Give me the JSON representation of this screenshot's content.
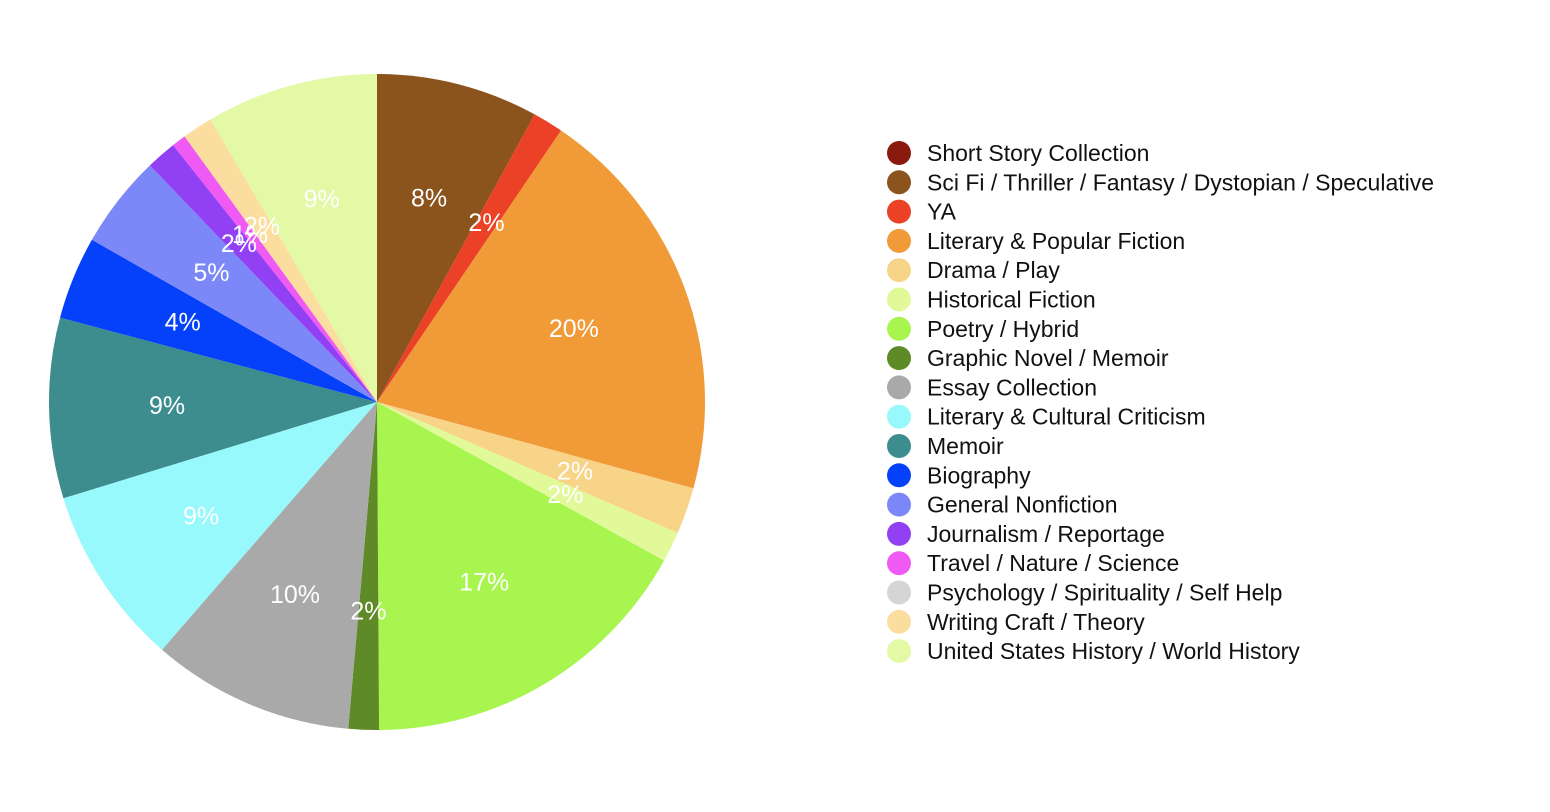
{
  "chart_data": {
    "type": "pie",
    "start_angle_deg": 0,
    "direction": "clockwise",
    "legend_position": "right",
    "slices": [
      {
        "name": "Short Story Collection",
        "value": 0,
        "label": "",
        "color": "#8B1A0E"
      },
      {
        "name": "Sci Fi / Thriller / Fantasy / Dystopian / Speculative",
        "value": 8,
        "label": "8%",
        "color": "#8B541C"
      },
      {
        "name": "YA",
        "value": 1.5,
        "label": "2%",
        "color": "#EA4127"
      },
      {
        "name": "Literary & Popular Fiction",
        "value": 19.8,
        "label": "20%",
        "color": "#F09A38"
      },
      {
        "name": "Drama / Play",
        "value": 2.3,
        "label": "2%",
        "color": "#F8D489"
      },
      {
        "name": "Historical Fiction",
        "value": 1.5,
        "label": "2%",
        "color": "#E2F99A"
      },
      {
        "name": "Poetry / Hybrid",
        "value": 16.9,
        "label": "17%",
        "color": "#A8F550"
      },
      {
        "name": "Graphic Novel / Memoir",
        "value": 1.5,
        "label": "2%",
        "color": "#5E8A27"
      },
      {
        "name": "Essay Collection",
        "value": 10,
        "label": "10%",
        "color": "#A9A9A9"
      },
      {
        "name": "Literary & Cultural Criticism",
        "value": 8.9,
        "label": "9%",
        "color": "#98F9FC"
      },
      {
        "name": "Memoir",
        "value": 8.9,
        "label": "9%",
        "color": "#3D8D8F"
      },
      {
        "name": "Biography",
        "value": 4.1,
        "label": "4%",
        "color": "#0541FA"
      },
      {
        "name": "General Nonfiction",
        "value": 4.6,
        "label": "5%",
        "color": "#7C88F7"
      },
      {
        "name": "Journalism / Reportage",
        "value": 1.5,
        "label": "2%",
        "color": "#9140F3"
      },
      {
        "name": "Travel / Nature / Science",
        "value": 0.7,
        "label": "1%",
        "color": "#EF59F4"
      },
      {
        "name": "Psychology / Spirituality / Self Help",
        "value": 0,
        "label": "",
        "color": "#D5D5D5"
      },
      {
        "name": "Writing Craft / Theory",
        "value": 1.5,
        "label": "2%",
        "color": "#FADD9F"
      },
      {
        "name": "United States History / World History",
        "value": 8.5,
        "label": "9%",
        "color": "#E3F9A6"
      }
    ]
  }
}
